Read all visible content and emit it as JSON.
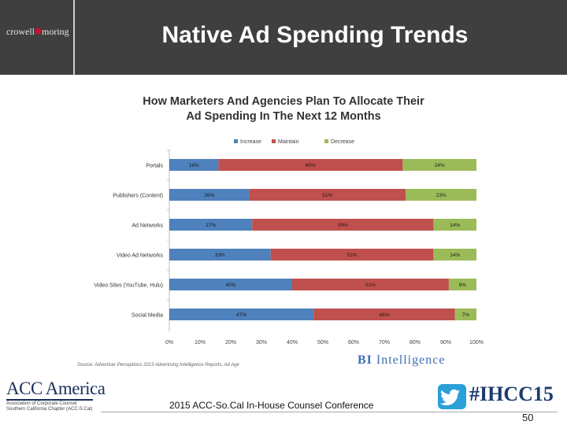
{
  "header": {
    "title": "Native Ad Spending Trends",
    "logo_left": "crowell",
    "logo_right": "moring"
  },
  "chart_data": {
    "type": "bar",
    "orientation": "horizontal",
    "stacked": true,
    "title_line1": "How Marketers And Agencies Plan To Allocate Their",
    "title_line2": "Ad Spending In The Next 12 Months",
    "categories": [
      "Portals",
      "Publishers (Content)",
      "Ad Networks",
      "Video Ad Networks",
      "Video Sites (YouTube, Hulu)",
      "Social Media"
    ],
    "series": [
      {
        "name": "Increase",
        "color": "#4f81bd",
        "values": [
          16,
          26,
          27,
          33,
          40,
          47
        ],
        "labels": [
          "16%",
          "26%",
          "27%",
          "33%",
          "40%",
          "47%"
        ]
      },
      {
        "name": "Maintain",
        "color": "#c0504d",
        "values": [
          60,
          51,
          59,
          53,
          51,
          46
        ],
        "labels": [
          "60%",
          "51%",
          "59%",
          "53%",
          "51%",
          "46%"
        ]
      },
      {
        "name": "Decrease",
        "color": "#9bbb59",
        "values": [
          24,
          23,
          14,
          14,
          9,
          7
        ],
        "labels": [
          "24%",
          "23%",
          "14%",
          "14%",
          "9%",
          "7%"
        ]
      }
    ],
    "xlim": [
      0,
      100
    ],
    "xticks": [
      "0%",
      "10%",
      "20%",
      "30%",
      "40%",
      "50%",
      "60%",
      "70%",
      "80%",
      "90%",
      "100%"
    ],
    "legend_position": "top"
  },
  "source": "Source: Advertiser Perceptions 2013 Advertising Intelligence Reports, Ad Age",
  "bi_logo": {
    "bi": "BI",
    "word": "Intelligence"
  },
  "acc": {
    "name": "ACC America",
    "line1": "Association of Corporate Counsel",
    "line2": "Southern California Chapter (ACC-S.Cal)"
  },
  "footer": {
    "conference": "2015 ACC-So.Cal In-House Counsel Conference",
    "hashtag": "#IHCC15",
    "page": "50"
  }
}
